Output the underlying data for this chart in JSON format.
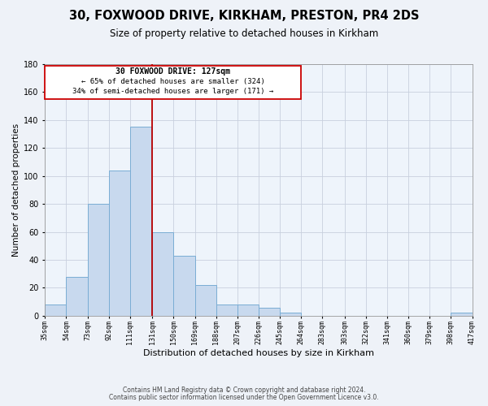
{
  "title": "30, FOXWOOD DRIVE, KIRKHAM, PRESTON, PR4 2DS",
  "subtitle": "Size of property relative to detached houses in Kirkham",
  "xlabel": "Distribution of detached houses by size in Kirkham",
  "ylabel": "Number of detached properties",
  "bar_color": "#c8d9ee",
  "bar_edge_color": "#7aadd4",
  "bins": [
    35,
    54,
    73,
    92,
    111,
    131,
    150,
    169,
    188,
    207,
    226,
    245,
    264,
    283,
    303,
    322,
    341,
    360,
    379,
    398,
    417
  ],
  "counts": [
    8,
    28,
    80,
    104,
    135,
    60,
    43,
    22,
    8,
    8,
    6,
    2,
    0,
    0,
    0,
    0,
    0,
    0,
    0,
    2
  ],
  "tick_labels": [
    "35sqm",
    "54sqm",
    "73sqm",
    "92sqm",
    "111sqm",
    "131sqm",
    "150sqm",
    "169sqm",
    "188sqm",
    "207sqm",
    "226sqm",
    "245sqm",
    "264sqm",
    "283sqm",
    "303sqm",
    "322sqm",
    "341sqm",
    "360sqm",
    "379sqm",
    "398sqm",
    "417sqm"
  ],
  "vline_x": 131,
  "ylim": [
    0,
    180
  ],
  "yticks": [
    0,
    20,
    40,
    60,
    80,
    100,
    120,
    140,
    160,
    180
  ],
  "annotation_title": "30 FOXWOOD DRIVE: 127sqm",
  "annotation_line1": "← 65% of detached houses are smaller (324)",
  "annotation_line2": "34% of semi-detached houses are larger (171) →",
  "footer1": "Contains HM Land Registry data © Crown copyright and database right 2024.",
  "footer2": "Contains public sector information licensed under the Open Government Licence v3.0.",
  "bg_color": "#eef2f8",
  "plot_bg_color": "#eef4fb",
  "grid_color": "#c8d0de",
  "vline_color": "#bb0000",
  "box_edge_color": "#cc0000"
}
